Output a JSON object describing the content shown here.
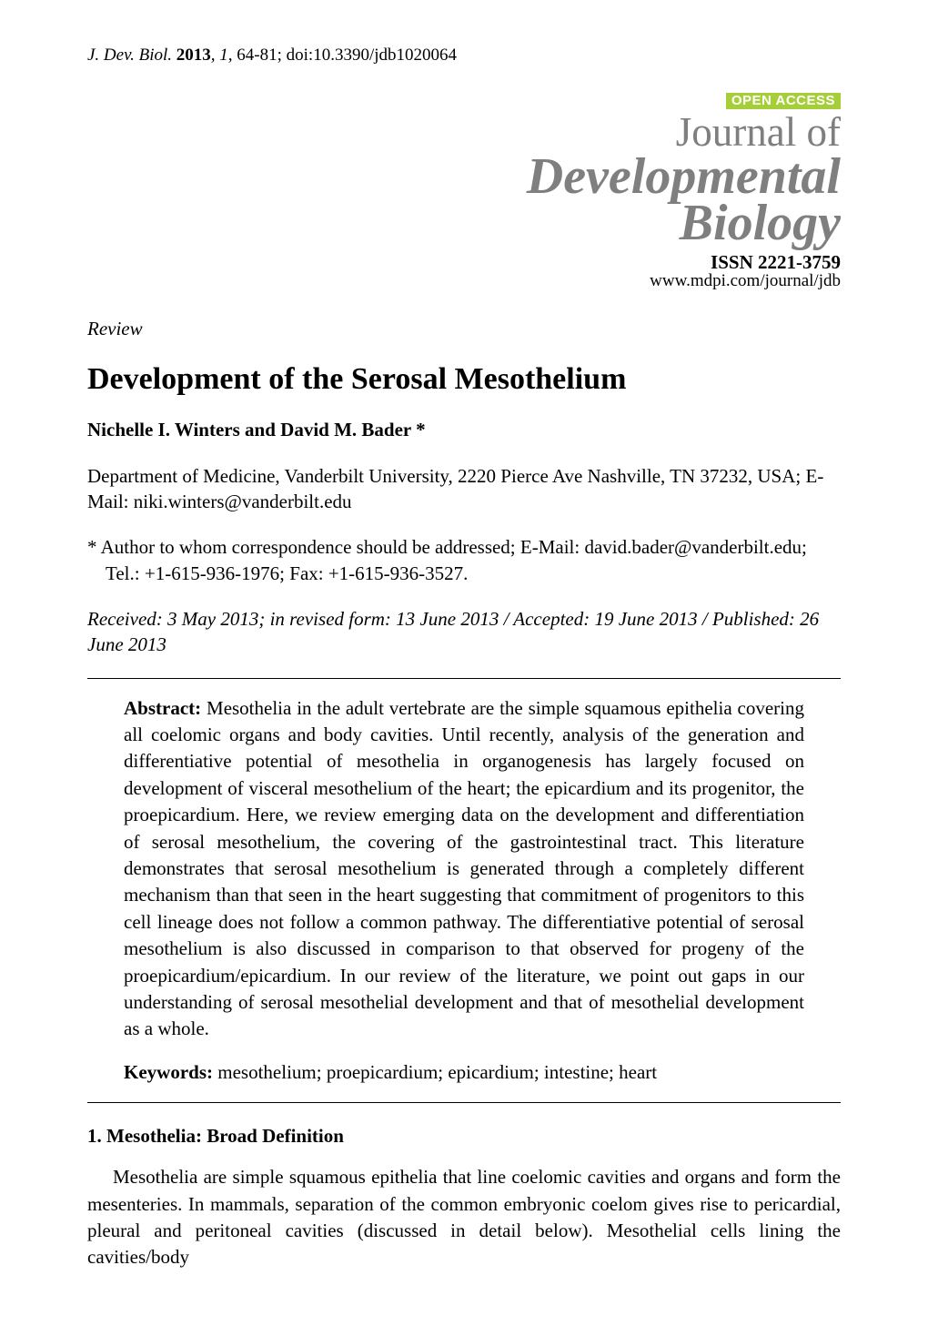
{
  "colors": {
    "page_bg": "#ffffff",
    "text": "#000000",
    "masthead_gray": "#7f7f7f",
    "open_access_bg": "#a6ce39",
    "open_access_fg": "#ffffff",
    "rule": "#000000"
  },
  "typography": {
    "body_family": "Times New Roman",
    "body_size_pt": 16,
    "title_size_pt": 26,
    "masthead_large_pt": 42,
    "masthead_journalof_pt": 34,
    "open_access_family": "Arial",
    "open_access_size_pt": 11
  },
  "running_head": {
    "journal_abbrev": "J. Dev. Biol.",
    "year": "2013",
    "volume": "1",
    "pages": "64-81",
    "doi_prefix": "doi:",
    "doi": "10.3390/jdb1020064"
  },
  "masthead": {
    "open_access": "OPEN ACCESS",
    "journal_of": "Journal of",
    "line1": "Developmental",
    "line2": "Biology",
    "issn_label": "ISSN 2221-3759",
    "url": "www.mdpi.com/journal/jdb"
  },
  "article": {
    "type": "Review",
    "title": "Development of the Serosal Mesothelium",
    "authors": "Nichelle I. Winters and David M. Bader *",
    "affiliation": "Department of Medicine, Vanderbilt University, 2220 Pierce Ave Nashville, TN 37232, USA; E-Mail: niki.winters@vanderbilt.edu",
    "correspondence": "*  Author to whom correspondence should be addressed; E-Mail: david.bader@vanderbilt.edu; Tel.: +1-615-936-1976; Fax: +1-615-936-3527.",
    "dates": "Received: 3 May 2013; in revised form: 13 June 2013 / Accepted: 19 June 2013 / Published: 26 June 2013"
  },
  "abstract": {
    "head": "Abstract:",
    "text": "Mesothelia in the adult vertebrate are the simple squamous epithelia covering all coelomic organs and body cavities. Until recently, analysis of the generation and differentiative potential of mesothelia in organogenesis has largely focused on development of visceral mesothelium of the heart; the epicardium and its progenitor, the proepicardium. Here, we review emerging data on the development and differentiation of serosal mesothelium, the covering of the gastrointestinal tract. This literature demonstrates that serosal mesothelium is generated through a completely different mechanism than that seen in the heart suggesting that commitment of progenitors to this cell lineage does not follow a common pathway. The differentiative potential of serosal mesothelium is also discussed in comparison to that observed for progeny of the proepicardium/epicardium. In our review of the literature, we point out gaps in our understanding of serosal mesothelial development and that of mesothelial development as a whole."
  },
  "keywords": {
    "head": "Keywords:",
    "text": "mesothelium; proepicardium; epicardium; intestine; heart"
  },
  "section1": {
    "heading": "1. Mesothelia: Broad Definition",
    "para1": "Mesothelia are simple squamous epithelia that line coelomic cavities and organs and form the mesenteries. In mammals, separation of the common embryonic coelom gives rise to pericardial, pleural and peritoneal cavities (discussed in detail below). Mesothelial cells lining the cavities/body"
  }
}
